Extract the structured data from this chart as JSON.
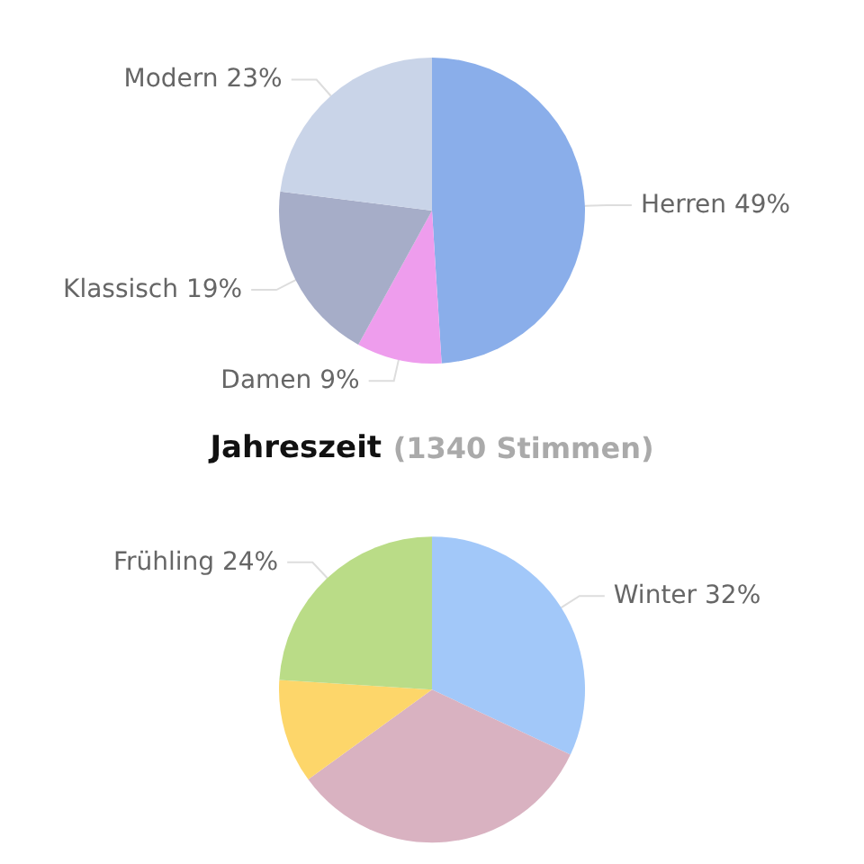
{
  "chart_data": [
    {
      "type": "pie",
      "categories": [
        "Herren",
        "Damen",
        "Klassisch",
        "Modern"
      ],
      "values": [
        49,
        9,
        19,
        23
      ],
      "value_labels": [
        "49%",
        "9%",
        "19%",
        "23%"
      ],
      "colors": [
        "#8aaeea",
        "#ee9ded",
        "#a6adc8",
        "#c9d4e8"
      ]
    },
    {
      "type": "pie",
      "title": "Jahreszeit",
      "subtitle": "(1340 Stimmen)",
      "categories": [
        "Winter",
        null,
        null,
        "Frühling"
      ],
      "values": [
        32,
        33,
        11,
        24
      ],
      "value_labels": [
        "32%",
        null,
        null,
        "24%"
      ],
      "colors": [
        "#a2c8f9",
        "#d9b2c1",
        "#fdd66a",
        "#badc87"
      ]
    }
  ]
}
